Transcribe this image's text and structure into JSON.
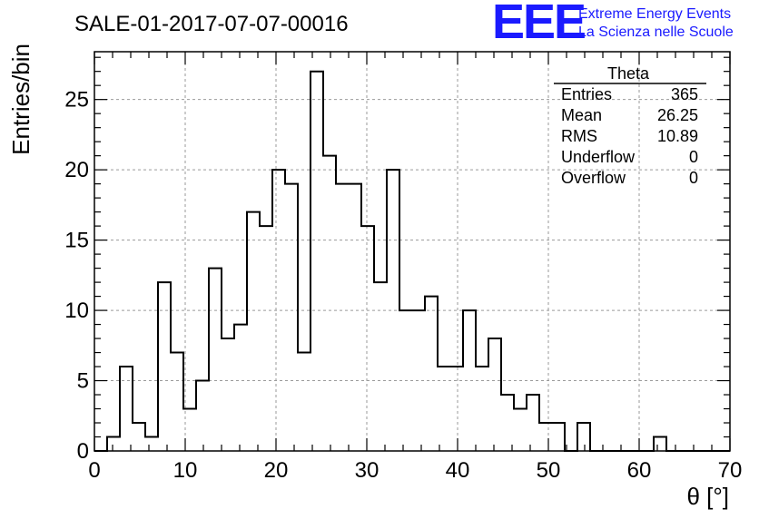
{
  "chart_data": {
    "type": "bar",
    "title": "SALE-01-2017-07-07-00016",
    "xlabel": "θ [°]",
    "ylabel": "Entries/bin",
    "xlim": [
      0,
      70
    ],
    "ylim": [
      0,
      28.4
    ],
    "xticks": [
      0,
      10,
      20,
      30,
      40,
      50,
      60,
      70
    ],
    "yticks": [
      0,
      5,
      10,
      15,
      20,
      25
    ],
    "bin_width": 1.4,
    "bin_edges_start": 0,
    "values": [
      0,
      1,
      6,
      2,
      1,
      12,
      7,
      3,
      5,
      13,
      8,
      9,
      17,
      16,
      20,
      19,
      7,
      27,
      21,
      19,
      19,
      16,
      12,
      20,
      10,
      10,
      11,
      6,
      6,
      10,
      6,
      8,
      4,
      3,
      4,
      2,
      2,
      0,
      2,
      0,
      0,
      0,
      0,
      0,
      1,
      0,
      0,
      0,
      0,
      0
    ],
    "grid": true,
    "stats_box": {
      "name": "Theta",
      "rows": [
        {
          "label": "Entries",
          "value": "365"
        },
        {
          "label": "Mean",
          "value": "26.25"
        },
        {
          "label": "RMS",
          "value": "10.89"
        },
        {
          "label": "Underflow",
          "value": "0"
        },
        {
          "label": "Overflow",
          "value": "0"
        }
      ]
    }
  },
  "logo": {
    "text": "EEE",
    "line1": "Extreme Energy Events",
    "line2": "La Scienza nelle Scuole"
  }
}
